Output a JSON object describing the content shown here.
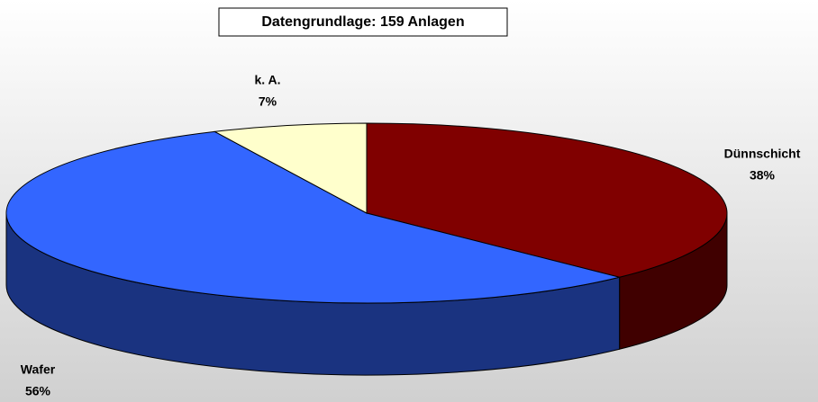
{
  "chart_data": {
    "type": "pie",
    "title": "Datengrundlage: 159 Anlagen",
    "categories": [
      "Dünnschicht",
      "Wafer",
      "k. A."
    ],
    "values": [
      38,
      56,
      7
    ],
    "value_labels": [
      "38%",
      "56%",
      "7%"
    ],
    "colors": [
      "#800000",
      "#3366ff",
      "#ffffcc"
    ]
  }
}
